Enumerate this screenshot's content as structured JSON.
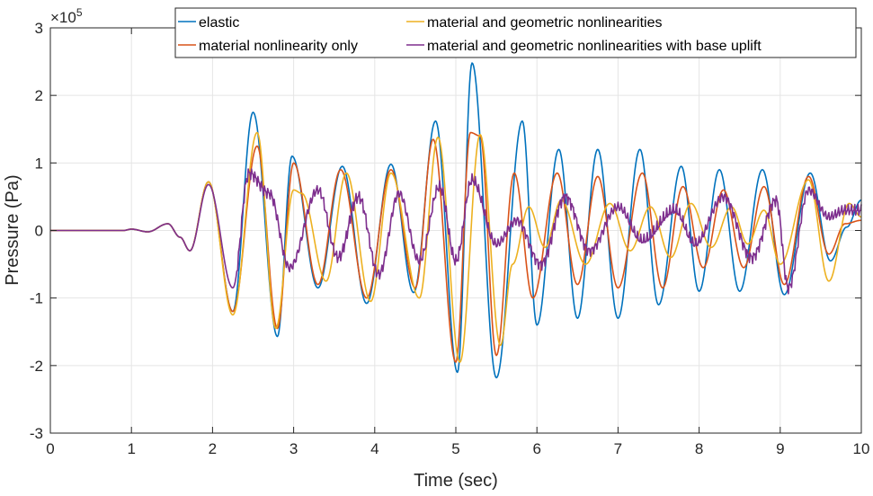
{
  "chart_data": {
    "type": "line",
    "title": "",
    "xlabel": "Time (sec)",
    "ylabel": "Pressure (Pa)",
    "xlim": [
      0,
      10
    ],
    "ylim": [
      -3,
      3
    ],
    "y_scale_label": "×10",
    "y_scale_exponent": "5",
    "grid": true,
    "legend_position": "top-right",
    "x_ticks": [
      "0",
      "1",
      "2",
      "3",
      "4",
      "5",
      "6",
      "7",
      "8",
      "9",
      "10"
    ],
    "y_ticks": [
      "-3",
      "-2",
      "-1",
      "0",
      "1",
      "2",
      "3"
    ],
    "series": [
      {
        "name": "elastic",
        "color": "#0072BD",
        "points": [
          [
            0,
            0
          ],
          [
            0.9,
            0
          ],
          [
            1.0,
            0.02
          ],
          [
            1.2,
            -0.02
          ],
          [
            1.45,
            0.1
          ],
          [
            1.6,
            -0.1
          ],
          [
            1.72,
            -0.3
          ],
          [
            1.95,
            0.72
          ],
          [
            2.25,
            -1.2
          ],
          [
            2.5,
            1.75
          ],
          [
            2.8,
            -1.57
          ],
          [
            2.98,
            1.1
          ],
          [
            3.3,
            -0.85
          ],
          [
            3.6,
            0.95
          ],
          [
            3.9,
            -1.08
          ],
          [
            4.2,
            0.98
          ],
          [
            4.48,
            -0.92
          ],
          [
            4.75,
            1.62
          ],
          [
            5.02,
            -2.1
          ],
          [
            5.2,
            2.48
          ],
          [
            5.5,
            -2.18
          ],
          [
            5.82,
            1.62
          ],
          [
            6.0,
            -1.4
          ],
          [
            6.27,
            1.2
          ],
          [
            6.5,
            -1.3
          ],
          [
            6.75,
            1.2
          ],
          [
            7.0,
            -1.3
          ],
          [
            7.27,
            1.2
          ],
          [
            7.5,
            -1.1
          ],
          [
            7.78,
            0.95
          ],
          [
            8.0,
            -0.9
          ],
          [
            8.25,
            0.9
          ],
          [
            8.5,
            -0.9
          ],
          [
            8.78,
            0.9
          ],
          [
            9.05,
            -0.95
          ],
          [
            9.37,
            0.85
          ],
          [
            9.62,
            -0.45
          ],
          [
            9.82,
            0.05
          ],
          [
            10.0,
            0.45
          ]
        ]
      },
      {
        "name": "material nonlinearity only",
        "color": "#D95319",
        "points": [
          [
            0,
            0
          ],
          [
            0.9,
            0
          ],
          [
            1.0,
            0.02
          ],
          [
            1.2,
            -0.02
          ],
          [
            1.45,
            0.1
          ],
          [
            1.6,
            -0.1
          ],
          [
            1.72,
            -0.3
          ],
          [
            1.95,
            0.72
          ],
          [
            2.25,
            -1.2
          ],
          [
            2.55,
            1.25
          ],
          [
            2.8,
            -1.45
          ],
          [
            3.0,
            1.0
          ],
          [
            3.3,
            -0.8
          ],
          [
            3.58,
            0.9
          ],
          [
            3.9,
            -1.0
          ],
          [
            4.2,
            0.9
          ],
          [
            4.5,
            -0.85
          ],
          [
            4.72,
            1.35
          ],
          [
            5.0,
            -1.95
          ],
          [
            5.18,
            1.45
          ],
          [
            5.3,
            1.4
          ],
          [
            5.5,
            -1.85
          ],
          [
            5.72,
            0.85
          ],
          [
            5.95,
            -1.0
          ],
          [
            6.25,
            0.85
          ],
          [
            6.5,
            -0.8
          ],
          [
            6.75,
            0.8
          ],
          [
            7.0,
            -0.85
          ],
          [
            7.3,
            0.85
          ],
          [
            7.55,
            -0.85
          ],
          [
            7.8,
            0.65
          ],
          [
            8.05,
            -0.55
          ],
          [
            8.3,
            0.6
          ],
          [
            8.55,
            -0.55
          ],
          [
            8.8,
            0.65
          ],
          [
            9.05,
            -0.8
          ],
          [
            9.35,
            0.8
          ],
          [
            9.6,
            -0.35
          ],
          [
            9.8,
            0.1
          ],
          [
            10.0,
            0.15
          ]
        ]
      },
      {
        "name": "material and geometric nonlinearities",
        "color": "#EDB120",
        "points": [
          [
            0,
            0
          ],
          [
            0.9,
            0
          ],
          [
            1.0,
            0.02
          ],
          [
            1.2,
            -0.02
          ],
          [
            1.45,
            0.1
          ],
          [
            1.6,
            -0.1
          ],
          [
            1.72,
            -0.3
          ],
          [
            1.95,
            0.72
          ],
          [
            2.25,
            -1.25
          ],
          [
            2.55,
            1.45
          ],
          [
            2.78,
            -1.45
          ],
          [
            3.0,
            0.6
          ],
          [
            3.1,
            0.55
          ],
          [
            3.4,
            -0.75
          ],
          [
            3.65,
            0.85
          ],
          [
            3.95,
            -1.05
          ],
          [
            4.2,
            0.85
          ],
          [
            4.55,
            -1.0
          ],
          [
            4.78,
            1.38
          ],
          [
            5.05,
            -1.95
          ],
          [
            5.3,
            1.42
          ],
          [
            5.55,
            -1.7
          ],
          [
            5.7,
            -0.5
          ],
          [
            5.9,
            0.35
          ],
          [
            6.1,
            -0.25
          ],
          [
            6.3,
            0.45
          ],
          [
            6.6,
            -0.5
          ],
          [
            6.9,
            0.4
          ],
          [
            7.15,
            -0.3
          ],
          [
            7.4,
            0.35
          ],
          [
            7.65,
            -0.4
          ],
          [
            7.9,
            0.4
          ],
          [
            8.15,
            -0.25
          ],
          [
            8.4,
            0.35
          ],
          [
            8.6,
            -0.2
          ],
          [
            8.8,
            0.3
          ],
          [
            9.0,
            -0.5
          ],
          [
            9.35,
            0.75
          ],
          [
            9.6,
            -0.75
          ],
          [
            9.85,
            0.4
          ],
          [
            10.0,
            0.2
          ]
        ]
      },
      {
        "name": "material and geometric nonlinearities with base uplift",
        "color": "#7E2F8E",
        "points": [
          [
            0,
            0
          ],
          [
            0.9,
            0
          ],
          [
            1.0,
            0.02
          ],
          [
            1.2,
            -0.02
          ],
          [
            1.45,
            0.1
          ],
          [
            1.6,
            -0.1
          ],
          [
            1.72,
            -0.3
          ],
          [
            1.95,
            0.68
          ],
          [
            2.25,
            -0.85
          ],
          [
            2.45,
            0.85
          ],
          [
            2.7,
            0.55
          ],
          [
            2.95,
            -0.55
          ],
          [
            3.3,
            0.6
          ],
          [
            3.55,
            -0.4
          ],
          [
            3.8,
            0.5
          ],
          [
            4.05,
            -0.65
          ],
          [
            4.3,
            0.55
          ],
          [
            4.55,
            -0.45
          ],
          [
            4.8,
            0.65
          ],
          [
            5.0,
            -0.45
          ],
          [
            5.2,
            0.75
          ],
          [
            5.5,
            -0.2
          ],
          [
            5.75,
            0.15
          ],
          [
            6.05,
            -0.5
          ],
          [
            6.35,
            0.5
          ],
          [
            6.65,
            -0.3
          ],
          [
            7.0,
            0.35
          ],
          [
            7.3,
            -0.15
          ],
          [
            7.7,
            0.3
          ],
          [
            7.95,
            -0.2
          ],
          [
            8.3,
            0.5
          ],
          [
            8.65,
            -0.4
          ],
          [
            8.95,
            0.45
          ],
          [
            9.1,
            -0.85
          ],
          [
            9.35,
            0.6
          ],
          [
            9.6,
            0.2
          ],
          [
            9.8,
            0.3
          ],
          [
            10.0,
            0.3
          ]
        ]
      }
    ]
  }
}
